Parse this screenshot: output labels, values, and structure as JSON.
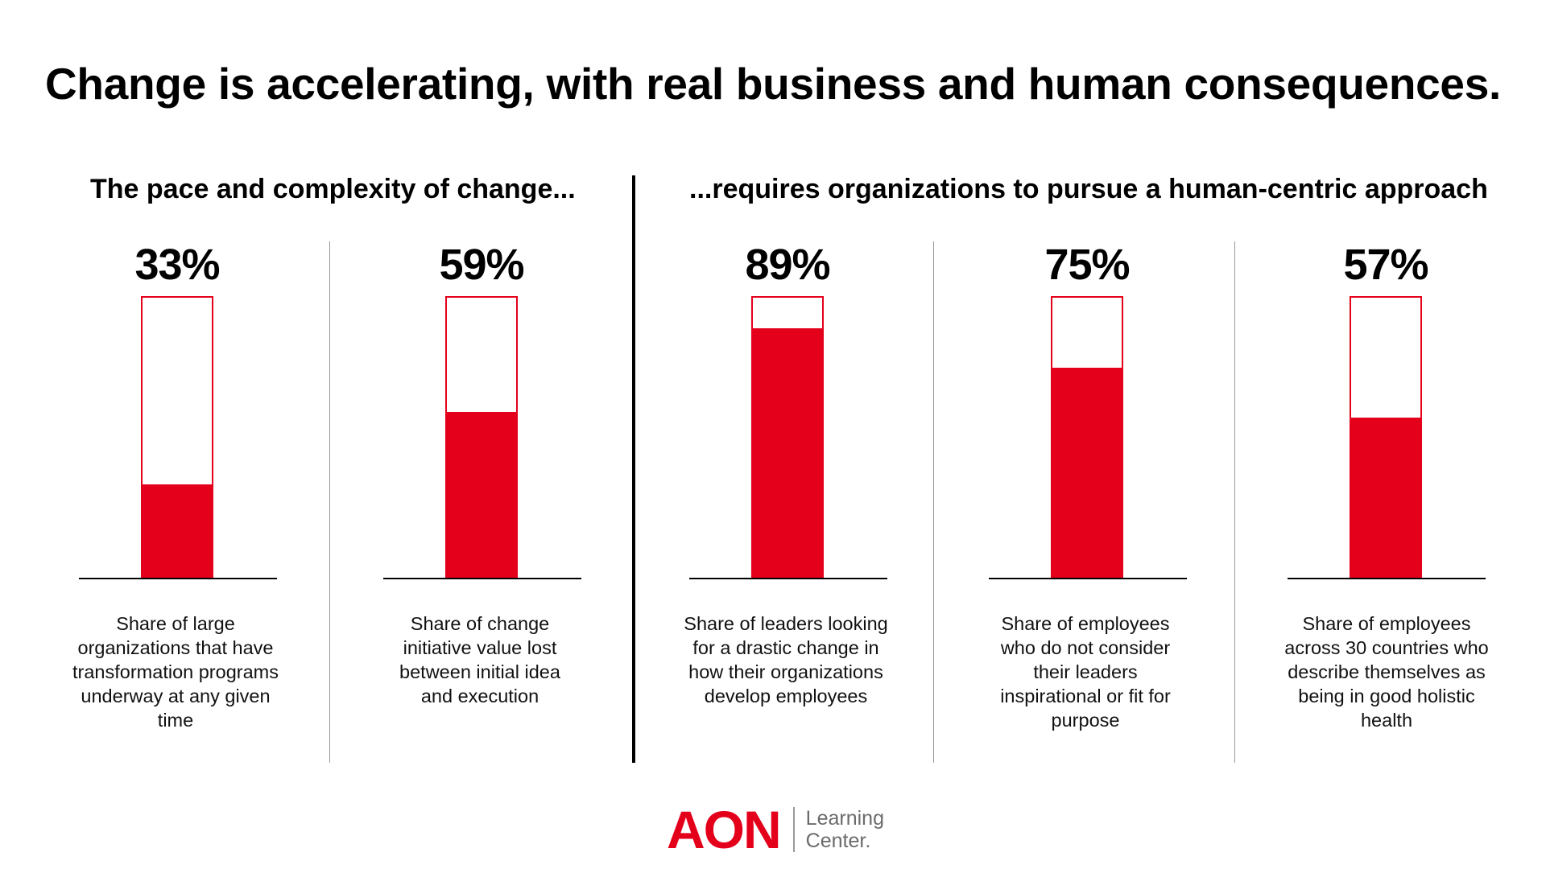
{
  "title": "Change is accelerating, with real business and human consequences.",
  "sections": {
    "left": "The pace and complexity of change...",
    "right": "...requires organizations to pursue a human-centric approach"
  },
  "colors": {
    "accent": "#e4001b",
    "text": "#000000",
    "divider": "#999999"
  },
  "chart_data": {
    "type": "bar",
    "title": "Change is accelerating, with real business and human consequences.",
    "categories": [
      "Share of large organizations that have transformation programs underway at any given time",
      "Share of change initiative value lost between initial idea and execution",
      "Share of leaders looking for a drastic change in how their organizations develop employees",
      "Share of employees who do not consider their leaders inspirational or fit for purpose",
      "Share of employees across 30 countries who describe themselves as being in good holistic health"
    ],
    "values": [
      33,
      59,
      89,
      75,
      57
    ],
    "labels": [
      "33%",
      "59%",
      "89%",
      "75%",
      "57%"
    ],
    "ylim": [
      0,
      100
    ],
    "unit": "%",
    "xlabel": "",
    "ylabel": ""
  },
  "logo": {
    "brand": "AON",
    "line1": "Learning",
    "line2": "Center."
  }
}
